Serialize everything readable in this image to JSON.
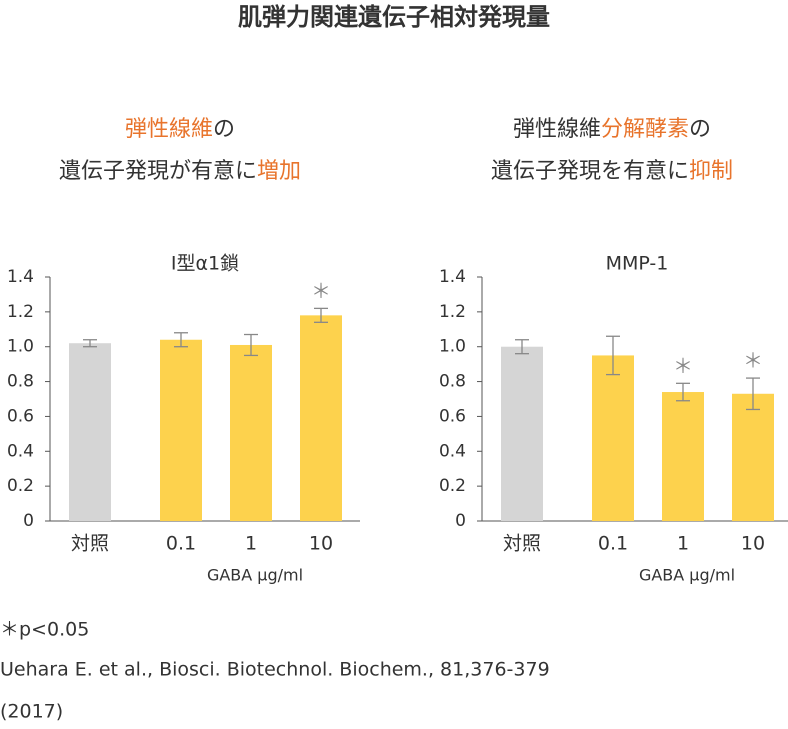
{
  "title": "肌弾力関連遺伝子相対発現量",
  "chart_data": [
    {
      "type": "bar",
      "subtitle": [
        [
          {
            "text": "弾性線維",
            "color": "#e8742c"
          },
          {
            "text": "の",
            "color": "#333333"
          }
        ],
        [
          {
            "text": "遺伝子発現が有意に",
            "color": "#333333"
          },
          {
            "text": "増加",
            "color": "#e8742c"
          }
        ]
      ],
      "title": "I型α1鎖",
      "categories": [
        "対照",
        "0.1",
        "1",
        "10"
      ],
      "xlabel": "GABA μg/ml",
      "values": [
        1.02,
        1.04,
        1.01,
        1.18
      ],
      "errors": [
        0.02,
        0.04,
        0.06,
        0.04
      ],
      "colors": [
        "#d5d5d5",
        "#fdd24d",
        "#fdd24d",
        "#fdd24d"
      ],
      "significance": [
        null,
        null,
        null,
        "＊"
      ],
      "ylim": [
        0,
        1.4
      ],
      "yticks": [
        0,
        0.2,
        0.4,
        0.6,
        0.8,
        {
          "value": 1,
          "label": "1.0"
        },
        1.2,
        1.4
      ]
    },
    {
      "type": "bar",
      "subtitle": [
        [
          {
            "text": "弾性線維",
            "color": "#333333"
          },
          {
            "text": "分解酵素",
            "color": "#e8742c"
          },
          {
            "text": "の",
            "color": "#333333"
          }
        ],
        [
          {
            "text": "遺伝子発現を有意に",
            "color": "#333333"
          },
          {
            "text": "抑制",
            "color": "#e8742c"
          }
        ]
      ],
      "title": "MMP-1",
      "categories": [
        "対照",
        "0.1",
        "1",
        "10"
      ],
      "xlabel": "GABA μg/ml",
      "values": [
        1.0,
        0.95,
        0.74,
        0.73
      ],
      "errors": [
        0.04,
        0.11,
        0.05,
        0.09
      ],
      "colors": [
        "#d5d5d5",
        "#fdd24d",
        "#fdd24d",
        "#fdd24d"
      ],
      "significance": [
        null,
        null,
        "＊",
        "＊"
      ],
      "ylim": [
        0,
        1.4
      ],
      "yticks": [
        0,
        0.2,
        0.4,
        0.6,
        0.8,
        {
          "value": 1,
          "label": "1.0"
        },
        1.2,
        1.4
      ]
    }
  ],
  "footnotes": [
    "＊p<0.05",
    "Uehara E. et al., Biosci. Biotechnol. Biochem., 81,376-379",
    "(2017)"
  ]
}
